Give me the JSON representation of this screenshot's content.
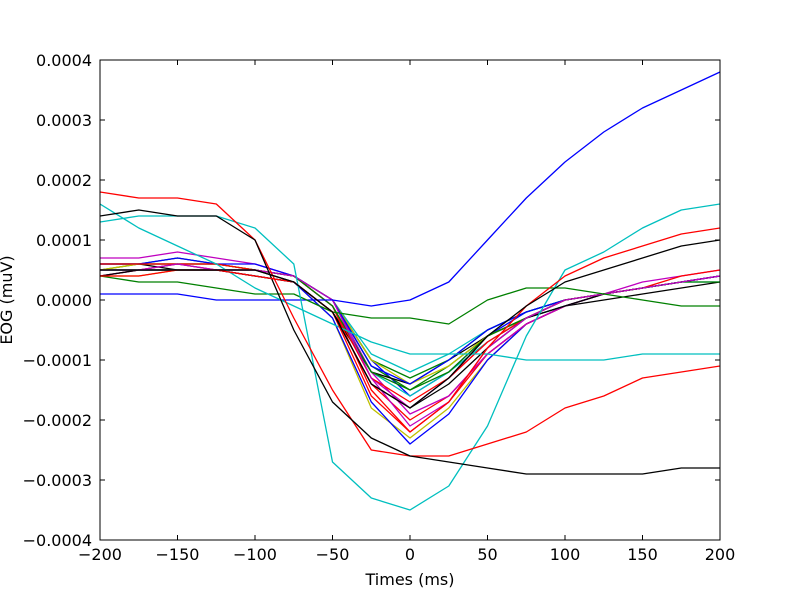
{
  "chart_data": {
    "type": "line",
    "title": "",
    "xlabel": "Times (ms)",
    "ylabel": "EOG (muV)",
    "xlim": [
      -200,
      200
    ],
    "ylim": [
      -0.0004,
      0.0004
    ],
    "xticks": [
      -200,
      -150,
      -100,
      -50,
      0,
      50,
      100,
      150,
      200
    ],
    "yticks": [
      -0.0004,
      -0.0003,
      -0.0002,
      -0.0001,
      0.0,
      0.0001,
      0.0002,
      0.0003,
      0.0004
    ],
    "xtick_labels": [
      "−200",
      "−150",
      "−100",
      "−50",
      "0",
      "50",
      "100",
      "150",
      "200"
    ],
    "ytick_labels": [
      "−0.0004",
      "−0.0003",
      "−0.0002",
      "−0.0001",
      "0.0000",
      "0.0001",
      "0.0002",
      "0.0003",
      "0.0004"
    ],
    "grid": false,
    "legend": "none",
    "x": [
      -200,
      -175,
      -150,
      -125,
      -100,
      -75,
      -50,
      -25,
      0,
      25,
      50,
      75,
      100,
      125,
      150,
      175,
      200
    ],
    "series": [
      {
        "color": "#0000ff",
        "values": [
          6e-05,
          6e-05,
          6e-05,
          6e-05,
          5e-05,
          4e-05,
          0.0,
          -0.0001,
          -0.00016,
          -0.00012,
          -6e-05,
          -2e-05,
          0.0,
          1e-05,
          2e-05,
          3e-05,
          4e-05
        ]
      },
      {
        "color": "#008000",
        "values": [
          5e-05,
          6e-05,
          7e-05,
          6e-05,
          5e-05,
          4e-05,
          0.0,
          -0.00011,
          -0.00015,
          -0.00011,
          -6e-05,
          -3e-05,
          0.0,
          1e-05,
          2e-05,
          3e-05,
          4e-05
        ]
      },
      {
        "color": "#ff0000",
        "values": [
          4e-05,
          5e-05,
          5e-05,
          5e-05,
          4e-05,
          3e-05,
          -2e-05,
          -0.00014,
          -0.0002,
          -0.00016,
          -9e-05,
          -4e-05,
          -1e-05,
          1e-05,
          2e-05,
          3e-05,
          4e-05
        ]
      },
      {
        "color": "#00bfbf",
        "values": [
          5e-05,
          5e-05,
          6e-05,
          5e-05,
          5e-05,
          4e-05,
          0.0,
          -9e-05,
          -0.00012,
          -9e-05,
          -5e-05,
          -2e-05,
          0.0,
          1e-05,
          2e-05,
          3e-05,
          3e-05
        ]
      },
      {
        "color": "#bf00bf",
        "values": [
          7e-05,
          7e-05,
          8e-05,
          7e-05,
          6e-05,
          4e-05,
          -1e-05,
          -0.00013,
          -0.00018,
          -0.00013,
          -7e-05,
          -3e-05,
          0.0,
          1e-05,
          3e-05,
          4e-05,
          5e-05
        ]
      },
      {
        "color": "#bfbf00",
        "values": [
          4e-05,
          4e-05,
          5e-05,
          5e-05,
          4e-05,
          3e-05,
          -3e-05,
          -0.00018,
          -0.00023,
          -0.00018,
          -0.0001,
          -4e-05,
          -1e-05,
          1e-05,
          2e-05,
          3e-05,
          4e-05
        ]
      },
      {
        "color": "#000000",
        "values": [
          6e-05,
          6e-05,
          5e-05,
          5e-05,
          5e-05,
          3e-05,
          -2e-05,
          -0.00012,
          -0.00014,
          -0.0001,
          -6e-05,
          -3e-05,
          -1e-05,
          0.0,
          1e-05,
          2e-05,
          3e-05
        ]
      },
      {
        "color": "#0000ff",
        "values": [
          5e-05,
          5e-05,
          5e-05,
          5e-05,
          4e-05,
          3e-05,
          -3e-05,
          -0.00017,
          -0.00024,
          -0.00019,
          -0.0001,
          -4e-05,
          -1e-05,
          1e-05,
          2e-05,
          3e-05,
          4e-05
        ]
      },
      {
        "color": "#008000",
        "values": [
          6e-05,
          6e-05,
          6e-05,
          6e-05,
          5e-05,
          4e-05,
          0.0,
          -0.0001,
          -0.00013,
          -0.0001,
          -5e-05,
          -2e-05,
          0.0,
          1e-05,
          2e-05,
          3e-05,
          4e-05
        ]
      },
      {
        "color": "#ff0000",
        "values": [
          5e-05,
          5e-05,
          6e-05,
          5e-05,
          5e-05,
          4e-05,
          -1e-05,
          -0.00015,
          -0.00022,
          -0.00017,
          -9e-05,
          -4e-05,
          -1e-05,
          1e-05,
          2e-05,
          3e-05,
          4e-05
        ]
      },
      {
        "color": "#00bfbf",
        "values": [
          5e-05,
          5e-05,
          5e-05,
          5e-05,
          5e-05,
          4e-05,
          -1e-05,
          -0.00012,
          -0.00016,
          -0.00012,
          -7e-05,
          -3e-05,
          -1e-05,
          1e-05,
          2e-05,
          3e-05,
          4e-05
        ]
      },
      {
        "color": "#bf00bf",
        "values": [
          4e-05,
          5e-05,
          5e-05,
          5e-05,
          5e-05,
          4e-05,
          0.0,
          -0.00012,
          -0.00019,
          -0.00016,
          -9e-05,
          -4e-05,
          -1e-05,
          1e-05,
          2e-05,
          3e-05,
          4e-05
        ]
      },
      {
        "color": "#bfbf00",
        "values": [
          5e-05,
          6e-05,
          6e-05,
          6e-05,
          5e-05,
          4e-05,
          0.0,
          -0.0001,
          -0.00014,
          -0.00011,
          -6e-05,
          -3e-05,
          0.0,
          1e-05,
          2e-05,
          3e-05,
          4e-05
        ]
      },
      {
        "color": "#000000",
        "values": [
          4e-05,
          5e-05,
          5e-05,
          5e-05,
          4e-05,
          3e-05,
          -2e-05,
          -0.00014,
          -0.00018,
          -0.00014,
          -8e-05,
          -3e-05,
          -1e-05,
          1e-05,
          2e-05,
          3e-05,
          4e-05
        ]
      },
      {
        "color": "#0000ff",
        "values": [
          6e-05,
          6e-05,
          7e-05,
          6e-05,
          6e-05,
          4e-05,
          0.0,
          -0.00011,
          -0.00014,
          -0.0001,
          -5e-05,
          -2e-05,
          0.0,
          1e-05,
          2e-05,
          3e-05,
          4e-05
        ]
      },
      {
        "color": "#ff0000",
        "values": [
          6e-05,
          6e-05,
          6e-05,
          6e-05,
          5e-05,
          4e-05,
          -1e-05,
          -0.00013,
          -0.00017,
          -0.00013,
          -7e-05,
          -3e-05,
          0.0,
          1e-05,
          2e-05,
          4e-05,
          5e-05
        ]
      },
      {
        "color": "#008000",
        "values": [
          5e-05,
          5e-05,
          5e-05,
          5e-05,
          5e-05,
          4e-05,
          -1e-05,
          -0.00012,
          -0.00015,
          -0.00012,
          -6e-05,
          -3e-05,
          0.0,
          1e-05,
          2e-05,
          3e-05,
          3e-05
        ]
      },
      {
        "color": "#bf00bf",
        "values": [
          5e-05,
          5e-05,
          6e-05,
          5e-05,
          5e-05,
          4e-05,
          0.0,
          -0.00013,
          -0.00021,
          -0.00017,
          -8e-05,
          -3e-05,
          0.0,
          1e-05,
          2e-05,
          3e-05,
          4e-05
        ]
      },
      {
        "color": "#0000ff",
        "values": [
          1e-05,
          1e-05,
          1e-05,
          0.0,
          0.0,
          0.0,
          0.0,
          -1e-05,
          0.0,
          3e-05,
          0.0001,
          0.00017,
          0.00023,
          0.00028,
          0.00032,
          0.00035,
          0.00038
        ]
      },
      {
        "color": "#008000",
        "values": [
          4e-05,
          3e-05,
          3e-05,
          2e-05,
          1e-05,
          1e-05,
          -2e-05,
          -3e-05,
          -3e-05,
          -4e-05,
          0.0,
          2e-05,
          2e-05,
          1e-05,
          0.0,
          -1e-05,
          -1e-05
        ]
      },
      {
        "color": "#00bfbf",
        "values": [
          0.00016,
          0.00012,
          9e-05,
          6e-05,
          2e-05,
          -1e-05,
          -4e-05,
          -7e-05,
          -9e-05,
          -9e-05,
          -9e-05,
          -0.0001,
          -0.0001,
          -0.0001,
          -9e-05,
          -9e-05,
          -9e-05
        ]
      },
      {
        "color": "#00bfbf",
        "values": [
          0.00013,
          0.00014,
          0.00014,
          0.00014,
          0.00012,
          6e-05,
          -0.00027,
          -0.00033,
          -0.00035,
          -0.00031,
          -0.00021,
          -6e-05,
          5e-05,
          8e-05,
          0.00012,
          0.00015,
          0.00016
        ]
      },
      {
        "color": "#ff0000",
        "values": [
          0.00018,
          0.00017,
          0.00017,
          0.00016,
          0.0001,
          -3e-05,
          -0.00015,
          -0.00025,
          -0.00026,
          -0.00026,
          -0.00024,
          -0.00022,
          -0.00018,
          -0.00016,
          -0.00013,
          -0.00012,
          -0.00011
        ]
      },
      {
        "color": "#000000",
        "values": [
          0.00014,
          0.00015,
          0.00014,
          0.00014,
          0.0001,
          -5e-05,
          -0.00017,
          -0.00023,
          -0.00026,
          -0.00027,
          -0.00028,
          -0.00029,
          -0.00029,
          -0.00029,
          -0.00029,
          -0.00028,
          -0.00028
        ]
      },
      {
        "color": "#ff0000",
        "values": [
          4e-05,
          4e-05,
          5e-05,
          5e-05,
          4e-05,
          3e-05,
          -2e-05,
          -0.00016,
          -0.00022,
          -0.00017,
          -8e-05,
          -1e-05,
          4e-05,
          7e-05,
          9e-05,
          0.00011,
          0.00012
        ]
      },
      {
        "color": "#000000",
        "values": [
          5e-05,
          5e-05,
          5e-05,
          5e-05,
          5e-05,
          3e-05,
          -2e-05,
          -0.00014,
          -0.00018,
          -0.00013,
          -6e-05,
          -1e-05,
          3e-05,
          5e-05,
          7e-05,
          9e-05,
          0.0001
        ]
      }
    ]
  }
}
